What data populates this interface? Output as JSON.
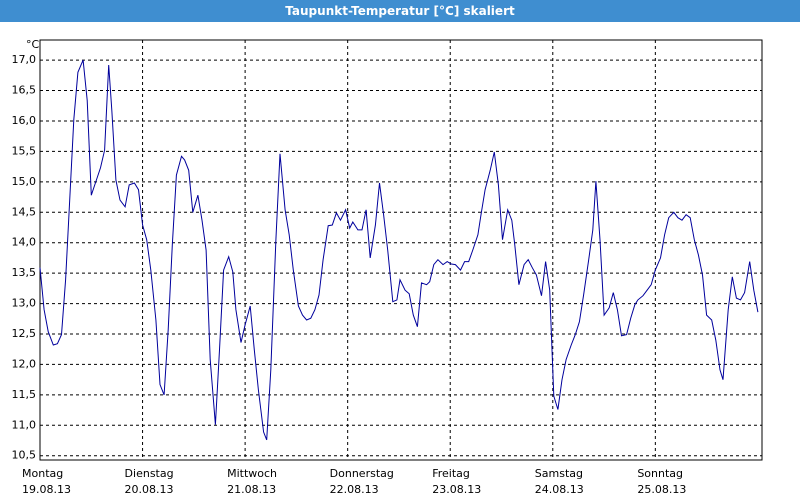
{
  "chart_data": {
    "type": "line",
    "title": "Taupunkt-Temperatur [°C] skaliert",
    "y_unit": "°C",
    "color": "#00009c",
    "grid": true,
    "xlim": [
      0,
      7.04
    ],
    "ylim": [
      10.43,
      17.33
    ],
    "xticks": [
      {
        "value": 0,
        "label": "Montag"
      },
      {
        "value": 1,
        "label": "Dienstag"
      },
      {
        "value": 2,
        "label": "Mittwoch"
      },
      {
        "value": 3,
        "label": "Donnerstag"
      },
      {
        "value": 4,
        "label": "Freitag"
      },
      {
        "value": 5,
        "label": "Samstag"
      },
      {
        "value": 6,
        "label": "Sonntag"
      }
    ],
    "xtick_dates": [
      "19.08.13",
      "20.08.13",
      "21.08.13",
      "22.08.13",
      "23.08.13",
      "24.08.13",
      "25.08.13"
    ],
    "yticks": [
      {
        "value": 10.5,
        "label": "10,5"
      },
      {
        "value": 11,
        "label": "11,0"
      },
      {
        "value": 11.5,
        "label": "11,5"
      },
      {
        "value": 12,
        "label": "12,0"
      },
      {
        "value": 12.5,
        "label": "12,5"
      },
      {
        "value": 13,
        "label": "13,0"
      },
      {
        "value": 13.5,
        "label": "13,5"
      },
      {
        "value": 14,
        "label": "14,0"
      },
      {
        "value": 14.5,
        "label": "14,5"
      },
      {
        "value": 15,
        "label": "15,0"
      },
      {
        "value": 15.5,
        "label": "15,5"
      },
      {
        "value": 16,
        "label": "16,0"
      },
      {
        "value": 16.5,
        "label": "16,5"
      },
      {
        "value": 17,
        "label": "17,0"
      }
    ],
    "x": [
      0,
      0.04,
      0.08,
      0.13,
      0.17,
      0.21,
      0.25,
      0.29,
      0.33,
      0.37,
      0.42,
      0.46,
      0.5,
      0.55,
      0.59,
      0.63,
      0.67,
      0.7,
      0.74,
      0.78,
      0.83,
      0.87,
      0.92,
      0.96,
      1,
      1.04,
      1.08,
      1.13,
      1.17,
      1.21,
      1.25,
      1.29,
      1.33,
      1.38,
      1.41,
      1.45,
      1.49,
      1.54,
      1.58,
      1.62,
      1.66,
      1.71,
      1.75,
      1.79,
      1.84,
      1.88,
      1.91,
      1.96,
      2,
      2.05,
      2.09,
      2.13,
      2.18,
      2.21,
      2.25,
      2.3,
      2.34,
      2.39,
      2.43,
      2.47,
      2.52,
      2.56,
      2.6,
      2.64,
      2.68,
      2.72,
      2.76,
      2.81,
      2.85,
      2.89,
      2.93,
      2.98,
      3.02,
      3.05,
      3.1,
      3.14,
      3.18,
      3.22,
      3.27,
      3.31,
      3.35,
      3.39,
      3.44,
      3.48,
      3.51,
      3.56,
      3.6,
      3.64,
      3.68,
      3.72,
      3.77,
      3.8,
      3.84,
      3.88,
      3.93,
      3.97,
      4.01,
      4.05,
      4.1,
      4.14,
      4.18,
      4.22,
      4.27,
      4.3,
      4.34,
      4.39,
      4.43,
      4.47,
      4.51,
      4.56,
      4.6,
      4.63,
      4.67,
      4.72,
      4.76,
      4.8,
      4.84,
      4.89,
      4.93,
      4.97,
      5.01,
      5.05,
      5.09,
      5.13,
      5.18,
      5.22,
      5.26,
      5.3,
      5.35,
      5.39,
      5.42,
      5.46,
      5.5,
      5.55,
      5.59,
      5.63,
      5.67,
      5.72,
      5.76,
      5.8,
      5.83,
      5.88,
      5.92,
      5.96,
      6,
      6.05,
      6.09,
      6.13,
      6.18,
      6.22,
      6.26,
      6.3,
      6.34,
      6.38,
      6.42,
      6.46,
      6.5,
      6.55,
      6.59,
      6.63,
      6.66,
      6.71,
      6.75,
      6.79,
      6.83,
      6.87,
      6.92,
      6.96,
      7
    ],
    "values": [
      13.59,
      12.9,
      12.54,
      12.32,
      12.34,
      12.49,
      13.39,
      14.7,
      16.02,
      16.8,
      17,
      16.34,
      14.78,
      15.03,
      15.23,
      15.52,
      16.92,
      16.18,
      15.03,
      14.7,
      14.59,
      14.95,
      14.98,
      14.87,
      14.29,
      14.05,
      13.55,
      12.73,
      11.67,
      11.5,
      12.57,
      13.96,
      15.11,
      15.42,
      15.36,
      15.19,
      14.5,
      14.78,
      14.37,
      13.88,
      12.08,
      11.01,
      12.24,
      13.55,
      13.77,
      13.52,
      12.9,
      12.36,
      12.65,
      12.96,
      12.24,
      11.58,
      10.89,
      10.76,
      11.91,
      14.05,
      15.46,
      14.54,
      14.13,
      13.55,
      12.96,
      12.81,
      12.73,
      12.76,
      12.9,
      13.14,
      13.72,
      14.28,
      14.29,
      14.49,
      14.37,
      14.54,
      14.24,
      14.34,
      14.21,
      14.21,
      14.54,
      13.75,
      14.29,
      14.98,
      14.46,
      13.88,
      13.03,
      13.06,
      13.39,
      13.22,
      13.16,
      12.81,
      12.62,
      13.34,
      13.31,
      13.36,
      13.64,
      13.72,
      13.64,
      13.69,
      13.65,
      13.64,
      13.55,
      13.69,
      13.69,
      13.88,
      14.13,
      14.46,
      14.87,
      15.19,
      15.49,
      14.95,
      14.05,
      14.54,
      14.37,
      13.96,
      13.31,
      13.64,
      13.72,
      13.59,
      13.47,
      13.13,
      13.69,
      13.22,
      11.48,
      11.26,
      11.75,
      12.08,
      12.32,
      12.49,
      12.7,
      13.14,
      13.72,
      14.21,
      15.01,
      14.05,
      12.81,
      12.93,
      13.18,
      12.9,
      12.47,
      12.49,
      12.76,
      12.98,
      13.06,
      13.13,
      13.22,
      13.31,
      13.55,
      13.75,
      14.13,
      14.41,
      14.5,
      14.41,
      14.37,
      14.46,
      14.41,
      14.05,
      13.8,
      13.47,
      12.81,
      12.73,
      12.4,
      11.91,
      11.75,
      12.9,
      13.44,
      13.09,
      13.06,
      13.18,
      13.69,
      13.22,
      12.86
    ]
  }
}
